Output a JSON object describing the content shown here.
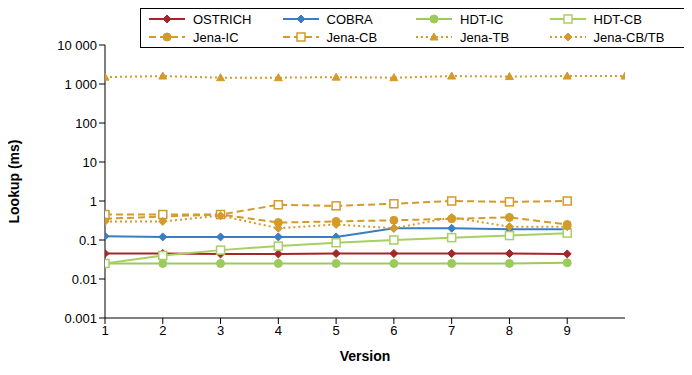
{
  "chart_data": {
    "type": "line",
    "log": "y",
    "grid": false,
    "legend": "top right",
    "x_label": "Version",
    "y_label": "Lookup (ms)",
    "x": [
      1,
      2,
      3,
      4,
      5,
      6,
      7,
      8,
      9,
      10
    ],
    "xlim": [
      1,
      10
    ],
    "xticks": [
      1,
      2,
      3,
      4,
      5,
      6,
      7,
      8,
      9
    ],
    "ylim": [
      0.001,
      10000
    ],
    "yticks": [
      0.001,
      0.01,
      0.1,
      1,
      10,
      100,
      {
        "value": 1000,
        "label": "1 000"
      },
      {
        "value": 10000,
        "label": "10 000"
      }
    ],
    "series": [
      {
        "name": "OSTRICH",
        "color": "#a3262a",
        "marker": "diamond",
        "line_style": "solid",
        "values": [
          0.045,
          0.045,
          0.044,
          0.044,
          0.045,
          0.045,
          0.045,
          0.045,
          0.044,
          null
        ]
      },
      {
        "name": "COBRA",
        "color": "#3b7dc4",
        "marker": "diamond",
        "line_style": "solid",
        "values": [
          0.125,
          0.12,
          0.12,
          0.12,
          0.12,
          0.2,
          0.2,
          0.19,
          0.19,
          null
        ]
      },
      {
        "name": "HDT-IC",
        "color": "#9bcb5b",
        "marker": "circle",
        "line_style": "solid",
        "values": [
          0.025,
          0.025,
          0.025,
          0.025,
          0.025,
          0.025,
          0.025,
          0.025,
          0.026,
          null
        ]
      },
      {
        "name": "HDT-CB",
        "color": "#a8cf62",
        "marker": "square_open",
        "line_style": "solid",
        "values": [
          0.025,
          0.04,
          0.055,
          0.07,
          0.085,
          0.1,
          0.115,
          0.13,
          0.15,
          null
        ]
      },
      {
        "name": "Jena-IC",
        "color": "#d49a2a",
        "marker": "circle",
        "line_style": "dashed",
        "values": [
          0.35,
          0.4,
          0.45,
          0.28,
          0.3,
          0.32,
          0.35,
          0.38,
          0.25,
          null
        ]
      },
      {
        "name": "Jena-CB",
        "color": "#d49a2a",
        "marker": "square_open",
        "line_style": "dashed",
        "values": [
          0.45,
          0.45,
          0.45,
          0.8,
          0.75,
          0.85,
          1.0,
          0.95,
          1.0,
          null
        ]
      },
      {
        "name": "Jena-TB",
        "color": "#d49a2a",
        "marker": "triangle",
        "line_style": "dotted",
        "values": [
          1500,
          1600,
          1450,
          1450,
          1500,
          1450,
          1600,
          1550,
          1600,
          1600
        ]
      },
      {
        "name": "Jena-CB/TB",
        "color": "#d49a2a",
        "marker": "diamond",
        "line_style": "dotted",
        "values": [
          0.3,
          0.3,
          0.42,
          0.2,
          0.25,
          0.2,
          0.38,
          0.22,
          0.22,
          null
        ]
      }
    ]
  }
}
